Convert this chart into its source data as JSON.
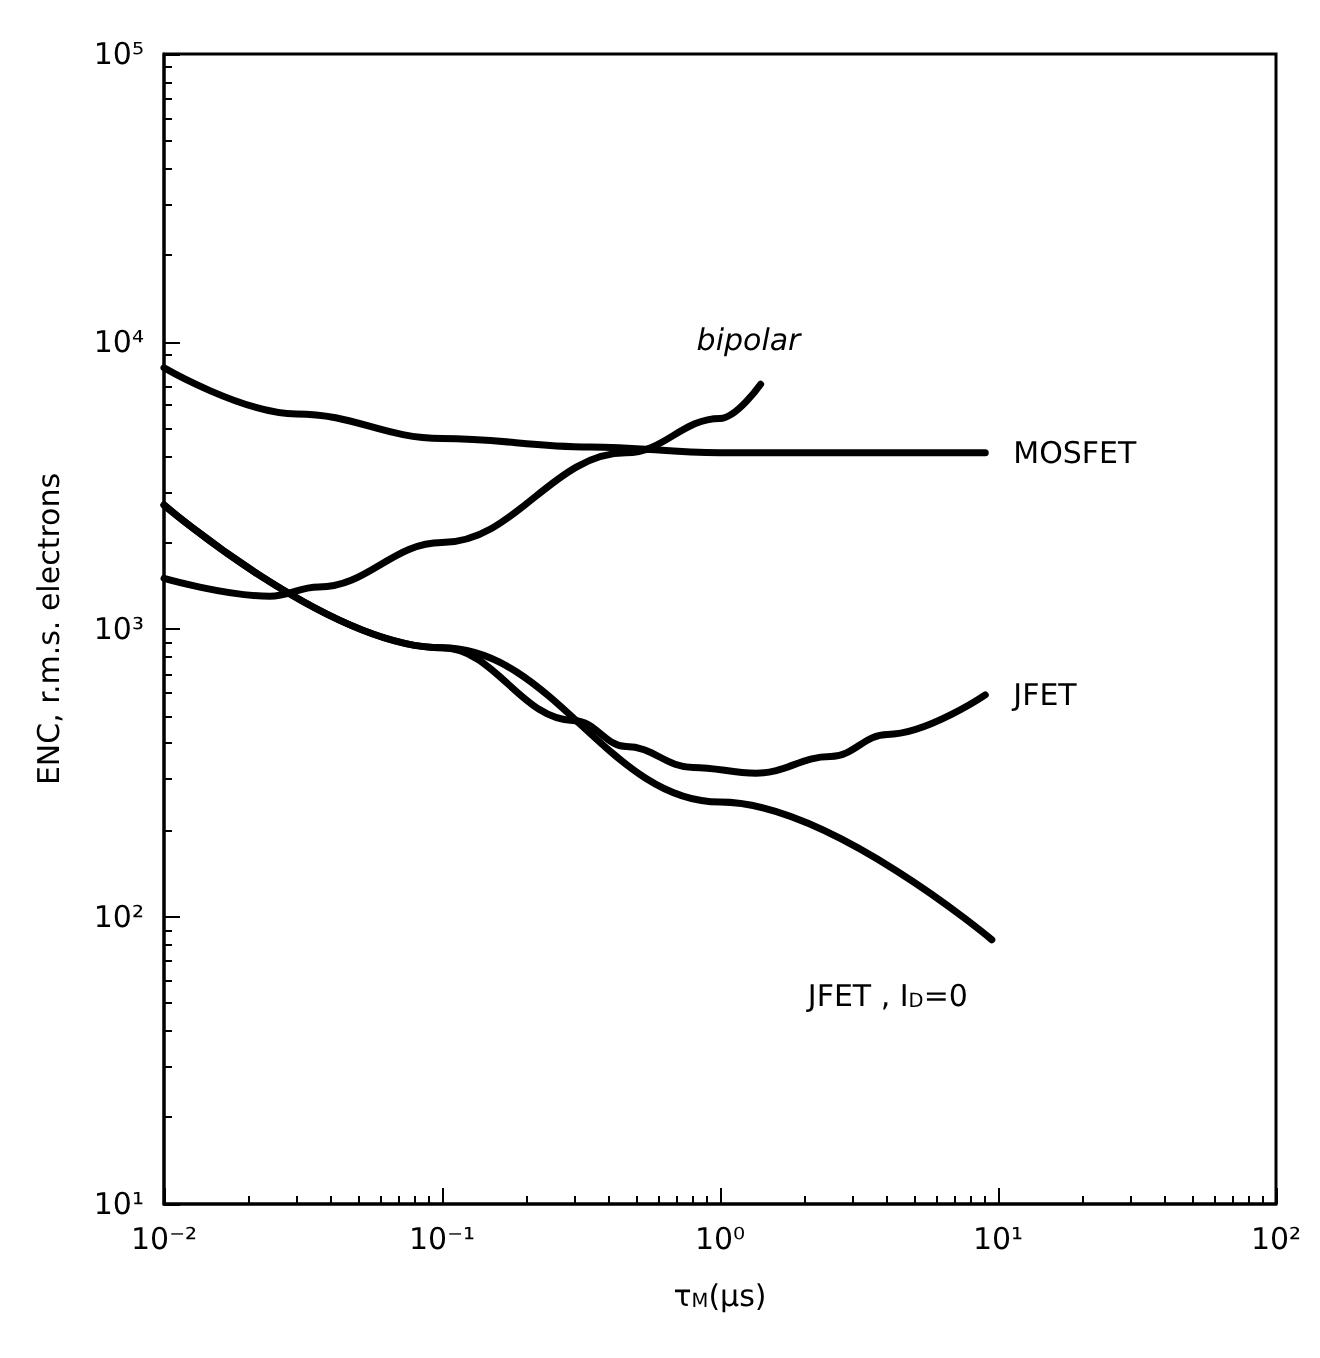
{
  "chart_data": {
    "type": "line",
    "xlabel": "τ$_{M}$(μs)",
    "ylabel": "ENC, r.m.s. electrons",
    "log": "xy",
    "grid": false,
    "marker": "none",
    "line_style": "solid",
    "xlim": [
      0.01,
      100
    ],
    "ylim": [
      10,
      100000
    ],
    "xticks": [
      {
        "value": 0.01,
        "label": "10⁻²"
      },
      {
        "value": 0.1,
        "label": "10⁻¹"
      },
      {
        "value": 1,
        "label": "10⁰"
      },
      {
        "value": 10,
        "label": "10¹"
      },
      {
        "value": 100,
        "label": "10²"
      }
    ],
    "yticks": [
      {
        "value": 10,
        "label": "10¹"
      },
      {
        "value": 100,
        "label": "10²"
      },
      {
        "value": 1000,
        "label": "10³"
      },
      {
        "value": 10000,
        "label": "10⁴"
      },
      {
        "value": 100000,
        "label": "10⁵"
      }
    ],
    "series": [
      {
        "name": "MOSFET",
        "color": "#000000",
        "x": [
          0.01,
          0.03,
          0.1,
          0.34,
          1,
          9
        ],
        "values": [
          8100,
          5600,
          4600,
          4300,
          4100,
          4100
        ]
      },
      {
        "name": "bipolar",
        "color": "#000000",
        "x": [
          0.01,
          0.024,
          0.036,
          0.1,
          0.46,
          1,
          1.4
        ],
        "values": [
          1500,
          1300,
          1400,
          2000,
          4100,
          5400,
          7100
        ]
      },
      {
        "name": "JFET",
        "color": "#000000",
        "x": [
          0.01,
          0.1,
          0.3,
          0.46,
          0.8,
          1.35,
          2.5,
          4,
          9
        ],
        "values": [
          2700,
          860,
          480,
          390,
          330,
          315,
          360,
          430,
          590
        ]
      },
      {
        "name": "JFET , I$_{D}$=0",
        "color": "#000000",
        "x": [
          0.01,
          0.1,
          1,
          9.5
        ],
        "values": [
          2700,
          860,
          250,
          83
        ]
      }
    ]
  }
}
